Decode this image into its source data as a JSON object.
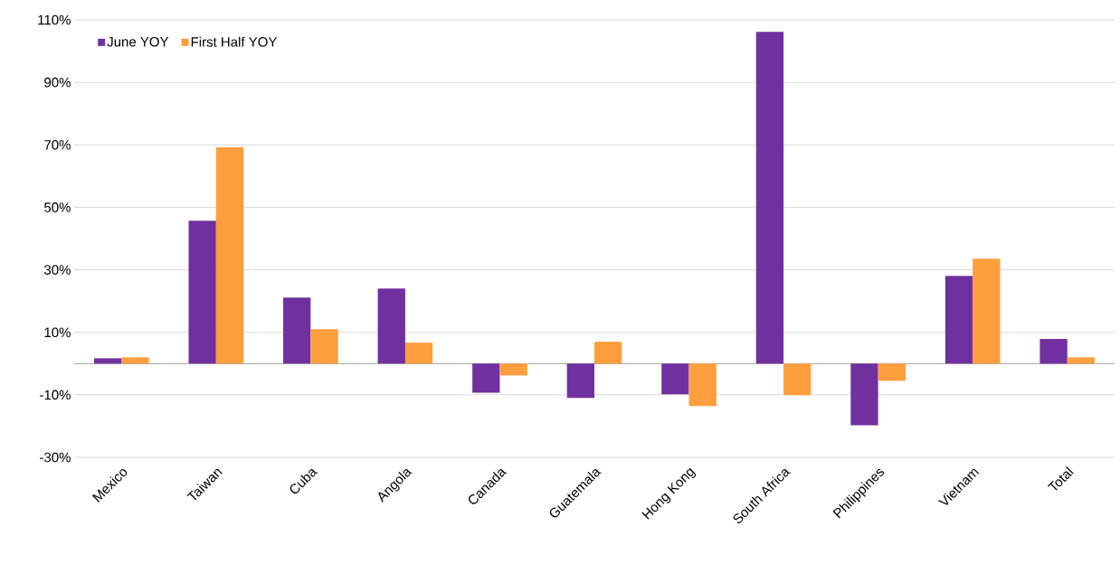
{
  "chart_data": {
    "type": "bar",
    "categories": [
      "Mexico",
      "Taiwan",
      "Cuba",
      "Angola",
      "Canada",
      "Guatemala",
      "Hong Kong",
      "South Africa",
      "Philippines",
      "Vietnam",
      "Total"
    ],
    "series": [
      {
        "name": "June YOY",
        "color": "#7030a0",
        "values": [
          1.7,
          45.7,
          21.1,
          24.0,
          -9.3,
          -11.0,
          -9.8,
          106.2,
          -19.7,
          28.1,
          7.9
        ]
      },
      {
        "name": "First Half YOY",
        "color": "#ff9e3d",
        "values": [
          2.0,
          69.2,
          11.0,
          6.7,
          -3.8,
          7.0,
          -13.6,
          -10.1,
          -5.5,
          33.6,
          2.0
        ]
      }
    ],
    "ylim": [
      -30,
      110
    ],
    "yticks": [
      {
        "value": -30,
        "label": "-30%"
      },
      {
        "value": -10,
        "label": "-10%"
      },
      {
        "value": 10,
        "label": "10%"
      },
      {
        "value": 30,
        "label": "30%"
      },
      {
        "value": 50,
        "label": "50%"
      },
      {
        "value": 70,
        "label": "70%"
      },
      {
        "value": 90,
        "label": "90%"
      },
      {
        "value": 110,
        "label": "110%"
      }
    ],
    "grid": "y",
    "legend": "top left"
  }
}
